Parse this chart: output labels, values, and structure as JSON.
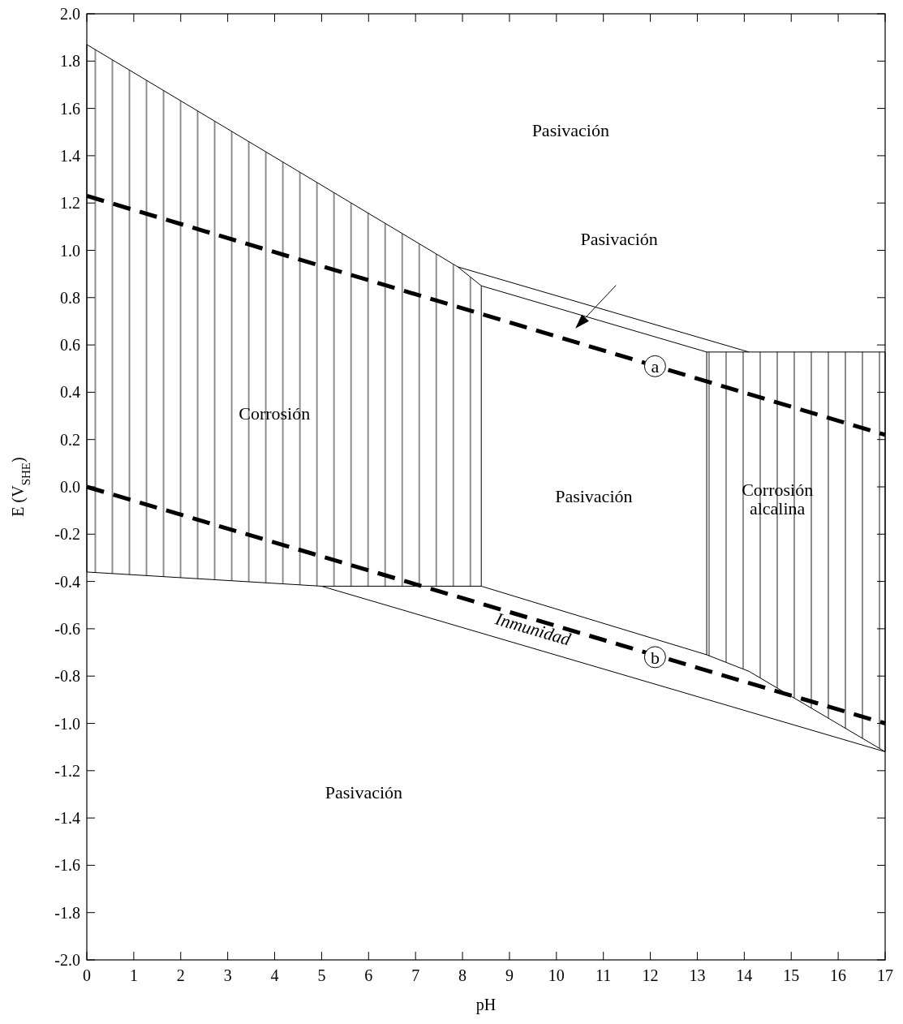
{
  "chart_data": {
    "type": "line",
    "xlabel": "pH",
    "ylabel": "E (V$_{SHE}$)",
    "xlim": [
      0,
      17
    ],
    "xticks": [
      0,
      1,
      2,
      3,
      4,
      5,
      6,
      7,
      8,
      9,
      10,
      11,
      12,
      13,
      14,
      15,
      16,
      17
    ],
    "ylim": [
      -2,
      2
    ],
    "yticks": [
      {
        "value": -2,
        "label": "-2.0"
      },
      {
        "value": -1.8,
        "label": "-1.8"
      },
      {
        "value": -1.6,
        "label": "-1.6"
      },
      {
        "value": -1.4,
        "label": "-1.4"
      },
      {
        "value": -1.2,
        "label": "-1.2"
      },
      {
        "value": -1,
        "label": "-1.0"
      },
      {
        "value": -0.8,
        "label": "-0.8"
      },
      {
        "value": -0.6,
        "label": "-0.6"
      },
      {
        "value": -0.4,
        "label": "-0.4"
      },
      {
        "value": -0.2,
        "label": "-0.2"
      },
      {
        "value": 0,
        "label": "0.0"
      },
      {
        "value": 0.2,
        "label": "0.2"
      },
      {
        "value": 0.4,
        "label": "0.4"
      },
      {
        "value": 0.6,
        "label": "0.6"
      },
      {
        "value": 0.8,
        "label": "0.8"
      },
      {
        "value": 1,
        "label": "1.0"
      },
      {
        "value": 1.2,
        "label": "1.2"
      },
      {
        "value": 1.4,
        "label": "1.4"
      },
      {
        "value": 1.6,
        "label": "1.6"
      },
      {
        "value": 1.8,
        "label": "1.8"
      },
      {
        "value": 2,
        "label": "2.0"
      }
    ],
    "grid": false,
    "marker": "none",
    "series": [
      {
        "type": "area",
        "color": "#000000",
        "x": [
          0,
          7.9,
          8.4,
          8.4,
          5.0,
          0,
          0
        ],
        "values": [
          1.87,
          0.93,
          0.85,
          -0.42,
          -0.42,
          -0.36,
          1.87
        ]
      },
      {
        "type": "area",
        "color": "#000000",
        "x": [
          13.2,
          17,
          17,
          14.1,
          13.2,
          13.2
        ],
        "values": [
          0.57,
          0.57,
          -1.12,
          -0.78,
          -0.71,
          0.57
        ]
      },
      {
        "color": "#000000",
        "line_style": "solid",
        "x": [
          7.9,
          14.1
        ],
        "values": [
          0.93,
          0.57
        ]
      },
      {
        "color": "#000000",
        "line_style": "solid",
        "x": [
          8.4,
          13.2
        ],
        "values": [
          0.85,
          0.57
        ]
      },
      {
        "color": "#000000",
        "line_style": "solid",
        "x": [
          5.0,
          17
        ],
        "values": [
          -0.42,
          -1.12
        ]
      },
      {
        "color": "#000000",
        "line_style": "solid",
        "x": [
          8.4,
          13.2
        ],
        "values": [
          -0.42,
          -0.71
        ]
      },
      {
        "color": "#000000",
        "line_style": "dashed",
        "x": [
          0,
          17
        ],
        "values": [
          1.23,
          0.22
        ]
      },
      {
        "color": "#000000",
        "line_style": "dashed",
        "x": [
          0,
          17
        ],
        "values": [
          0,
          -1.0
        ]
      }
    ],
    "annotations": [
      "Pasivación",
      "Pasivación",
      "Corrosión",
      "Pasivación",
      "Corrosión alcalina",
      "Inmunidad",
      "Pasivación",
      {
        "text": "a",
        "x": 12.1,
        "y": 0.51
      },
      {
        "text": "b",
        "x": 12.1,
        "y": -0.72
      }
    ]
  }
}
